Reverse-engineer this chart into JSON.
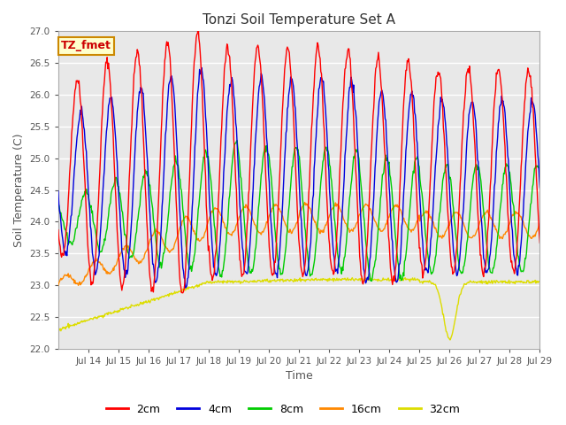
{
  "title": "Tonzi Soil Temperature Set A",
  "xlabel": "Time",
  "ylabel": "Soil Temperature (C)",
  "ylim": [
    22.0,
    27.0
  ],
  "yticks": [
    22.0,
    22.5,
    23.0,
    23.5,
    24.0,
    24.5,
    25.0,
    25.5,
    26.0,
    26.5,
    27.0
  ],
  "fig_facecolor": "#ffffff",
  "plot_bg_color": "#e8e8e8",
  "legend_label": "TZ_fmet",
  "series_colors": {
    "2cm": "#ff0000",
    "4cm": "#0000dd",
    "8cm": "#00cc00",
    "16cm": "#ff8800",
    "32cm": "#dddd00"
  },
  "n_points": 720,
  "start_day": 13.0,
  "end_day": 29.0,
  "x_tick_days": [
    14,
    15,
    16,
    17,
    18,
    19,
    20,
    21,
    22,
    23,
    24,
    25,
    26,
    27,
    28,
    29
  ],
  "x_tick_labels": [
    "Jul 14",
    "Jul 15",
    "Jul 16",
    "Jul 17",
    "Jul 18",
    "Jul 19",
    "Jul 20",
    "Jul 21",
    "Jul 22",
    "Jul 23",
    "Jul 24",
    "Jul 25",
    "Jul 26",
    "Jul 27",
    "Jul 28",
    "Jul 29"
  ],
  "annotation_text": "TZ_fmet"
}
